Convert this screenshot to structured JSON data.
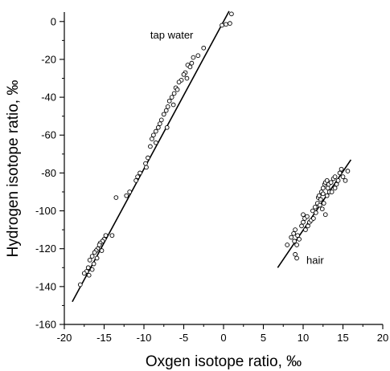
{
  "chart_data": {
    "type": "scatter",
    "title": "",
    "xlabel": "Oxgen isotope ratio, ‰",
    "ylabel": "Hydrogen isotope ratio, ‰",
    "xlim": [
      -20,
      20
    ],
    "ylim": [
      -160,
      5
    ],
    "xticks": [
      -20,
      -15,
      -10,
      -5,
      0,
      5,
      10,
      15,
      20
    ],
    "yticks": [
      0,
      -20,
      -40,
      -60,
      -80,
      -100,
      -120,
      -140,
      -160
    ],
    "grid": false,
    "legend": "none",
    "annotations": [
      {
        "text": "tap water",
        "x": -6.5,
        "y": -9
      },
      {
        "text": "hair",
        "x": 11.5,
        "y": -128
      }
    ],
    "series": [
      {
        "points": [
          [
            1.0,
            4
          ],
          [
            0.8,
            -1
          ],
          [
            0.3,
            -1.5
          ],
          [
            -0.2,
            -2
          ],
          [
            -2.5,
            -14
          ],
          [
            -3.2,
            -18
          ],
          [
            -3.8,
            -19
          ],
          [
            -4.0,
            -22
          ],
          [
            -4.5,
            -23
          ],
          [
            -4.2,
            -24
          ],
          [
            -4.8,
            -27
          ],
          [
            -5.0,
            -28
          ],
          [
            -4.6,
            -30
          ],
          [
            -5.3,
            -31
          ],
          [
            -5.6,
            -32
          ],
          [
            -6.0,
            -35
          ],
          [
            -5.8,
            -36
          ],
          [
            -6.2,
            -38
          ],
          [
            -6.5,
            -40
          ],
          [
            -6.8,
            -42
          ],
          [
            -6.3,
            -44
          ],
          [
            -7.0,
            -45
          ],
          [
            -7.2,
            -47
          ],
          [
            -7.5,
            -49
          ],
          [
            -7.8,
            -52
          ],
          [
            -8.0,
            -54
          ],
          [
            -8.2,
            -56
          ],
          [
            -7.1,
            -56
          ],
          [
            -8.5,
            -58
          ],
          [
            -8.8,
            -60
          ],
          [
            -9.0,
            -62
          ],
          [
            -8.5,
            -64
          ],
          [
            -9.2,
            -66
          ],
          [
            -9.5,
            -72
          ],
          [
            -9.8,
            -75
          ],
          [
            -9.7,
            -77
          ],
          [
            -10.5,
            -80
          ],
          [
            -10.8,
            -82
          ],
          [
            -11.0,
            -84
          ],
          [
            -11.8,
            -90
          ],
          [
            -12.2,
            -92
          ],
          [
            -13.5,
            -93
          ],
          [
            -14.0,
            -113
          ],
          [
            -14.8,
            -113
          ],
          [
            -15.0,
            -115
          ],
          [
            -15.2,
            -116
          ],
          [
            -15.5,
            -117
          ],
          [
            -15.6,
            -118
          ],
          [
            -15.8,
            -120
          ],
          [
            -16.0,
            -121
          ],
          [
            -15.3,
            -121
          ],
          [
            -16.2,
            -122
          ],
          [
            -16.5,
            -124
          ],
          [
            -15.9,
            -125
          ],
          [
            -16.8,
            -126
          ],
          [
            -16.3,
            -128
          ],
          [
            -17.0,
            -130
          ],
          [
            -16.5,
            -131
          ],
          [
            -17.2,
            -132
          ],
          [
            -17.5,
            -133
          ],
          [
            -16.9,
            -134
          ],
          [
            -18.0,
            -139
          ]
        ]
      },
      {
        "points": [
          [
            8.0,
            -118
          ],
          [
            8.8,
            -112
          ],
          [
            8.5,
            -114
          ],
          [
            9.0,
            -110
          ],
          [
            9.3,
            -113
          ],
          [
            8.9,
            -116
          ],
          [
            9.5,
            -115
          ],
          [
            9.2,
            -118
          ],
          [
            9.0,
            -123
          ],
          [
            9.2,
            -125
          ],
          [
            9.8,
            -108
          ],
          [
            10.0,
            -106
          ],
          [
            10.2,
            -104
          ],
          [
            10.0,
            -102
          ],
          [
            10.5,
            -103
          ],
          [
            10.3,
            -110
          ],
          [
            10.6,
            -108
          ],
          [
            10.8,
            -106
          ],
          [
            11.0,
            -105
          ],
          [
            11.2,
            -100
          ],
          [
            11.5,
            -98
          ],
          [
            11.3,
            -104
          ],
          [
            11.8,
            -96
          ],
          [
            11.9,
            -93
          ],
          [
            12.0,
            -92
          ],
          [
            12.2,
            -94
          ],
          [
            12.3,
            -90
          ],
          [
            12.5,
            -91
          ],
          [
            12.5,
            -88
          ],
          [
            12.7,
            -86
          ],
          [
            12.8,
            -85
          ],
          [
            13.0,
            -84
          ],
          [
            13.1,
            -88
          ],
          [
            13.2,
            -86
          ],
          [
            13.3,
            -90
          ],
          [
            13.0,
            -92
          ],
          [
            12.6,
            -96
          ],
          [
            12.4,
            -99
          ],
          [
            12.8,
            -102
          ],
          [
            13.5,
            -85
          ],
          [
            13.8,
            -83
          ],
          [
            14.0,
            -82
          ],
          [
            14.2,
            -86
          ],
          [
            14.4,
            -84
          ],
          [
            14.6,
            -80
          ],
          [
            14.8,
            -78
          ],
          [
            15.0,
            -82
          ],
          [
            15.3,
            -84
          ],
          [
            15.6,
            -79
          ],
          [
            14.0,
            -88
          ],
          [
            13.6,
            -90
          ],
          [
            12.1,
            -97
          ],
          [
            11.6,
            -101
          ]
        ]
      }
    ],
    "fit_lines": [
      {
        "from": [
          -19,
          -148
        ],
        "to": [
          0.7,
          5.5
        ]
      },
      {
        "from": [
          6.8,
          -130
        ],
        "to": [
          16.0,
          -73
        ]
      }
    ]
  }
}
